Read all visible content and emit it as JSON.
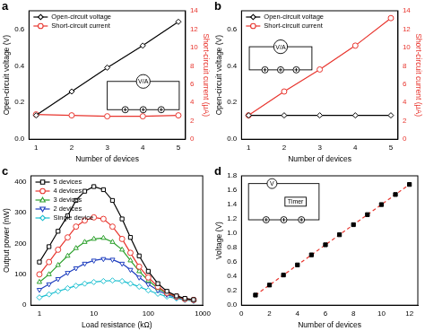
{
  "chart_data": [
    {
      "type": "line",
      "title": "a",
      "x": [
        1,
        2,
        3,
        4,
        5
      ],
      "xlim": [
        0.8,
        5.2
      ],
      "xticks": [
        1,
        2,
        3,
        4,
        5
      ],
      "x_label": "Number of devices",
      "y_label": "Open-circuit voltage (V)",
      "y2_label": "Short-circuit current (μA)",
      "ylim": [
        0,
        0.7
      ],
      "yticks": [
        {
          "value": 0,
          "label": "0.0"
        },
        0.2,
        0.4,
        0.6
      ],
      "y2lim": [
        0,
        14
      ],
      "y2ticks": [
        0,
        2,
        4,
        6,
        8,
        10,
        12,
        14
      ],
      "grid": false,
      "legend": "upper left",
      "series": [
        {
          "name": "Open-circuit voltage",
          "color": "#000000",
          "marker": "diamond",
          "values": [
            0.13,
            0.26,
            0.39,
            0.51,
            0.64
          ]
        },
        {
          "name": "Short-circuit current",
          "color": "#e8352e",
          "marker": "circle",
          "axis": "y2",
          "values": [
            2.7,
            2.6,
            2.5,
            2.5,
            2.6
          ]
        }
      ],
      "annotations": [
        "V/A"
      ]
    },
    {
      "type": "line",
      "title": "b",
      "x": [
        1,
        2,
        3,
        4,
        5
      ],
      "xlim": [
        0.8,
        5.2
      ],
      "xticks": [
        1,
        2,
        3,
        4,
        5
      ],
      "x_label": "Number of devices",
      "y_label": "Open-circuit voltage (V)",
      "y2_label": "Short-circuit current (μA)",
      "ylim": [
        0,
        0.7
      ],
      "yticks": [
        {
          "value": 0,
          "label": "0.0"
        },
        0.2,
        0.4,
        0.6
      ],
      "y2lim": [
        0,
        14
      ],
      "y2ticks": [
        0,
        2,
        4,
        6,
        8,
        10,
        12,
        14
      ],
      "grid": false,
      "legend": "upper left",
      "series": [
        {
          "name": "Open-circuit voltage",
          "color": "#000000",
          "marker": "diamond",
          "values": [
            0.13,
            0.13,
            0.13,
            0.13,
            0.13
          ]
        },
        {
          "name": "Short-circuit current",
          "color": "#e8352e",
          "marker": "circle",
          "axis": "y2",
          "values": [
            2.6,
            5.2,
            7.6,
            10.2,
            13.2
          ]
        }
      ],
      "annotations": [
        "V/A"
      ]
    },
    {
      "type": "line",
      "title": "c",
      "log": "x",
      "x": [
        1,
        1.5,
        2.2,
        3.3,
        4.7,
        6.8,
        10,
        15,
        22,
        33,
        47,
        68,
        100,
        150,
        220,
        330,
        470,
        680
      ],
      "xlim": [
        0.7,
        1000
      ],
      "xticks": [
        1,
        10,
        100,
        1000
      ],
      "x_label": "Load resistance (kΩ)",
      "y_label": "Output power (nW)",
      "ylim": [
        0,
        420
      ],
      "yticks": [
        0,
        100,
        200,
        300,
        400
      ],
      "grid": false,
      "legend": "upper left",
      "series": [
        {
          "name": "5 devices",
          "color": "#000000",
          "marker": "square",
          "values": [
            140,
            190,
            240,
            290,
            340,
            370,
            385,
            375,
            340,
            280,
            220,
            160,
            110,
            70,
            45,
            30,
            22,
            18
          ]
        },
        {
          "name": "4 devices",
          "color": "#e8352e",
          "marker": "circle",
          "values": [
            100,
            140,
            180,
            220,
            255,
            275,
            285,
            280,
            255,
            215,
            170,
            125,
            90,
            60,
            40,
            28,
            20,
            17
          ]
        },
        {
          "name": "3 devices",
          "color": "#2ca02c",
          "marker": "triangle",
          "values": [
            75,
            100,
            130,
            160,
            185,
            205,
            215,
            218,
            205,
            180,
            145,
            110,
            80,
            55,
            38,
            27,
            20,
            16
          ]
        },
        {
          "name": "2 devices",
          "color": "#1f3fbf",
          "marker": "triangle-down",
          "values": [
            50,
            68,
            85,
            105,
            120,
            135,
            145,
            150,
            148,
            135,
            115,
            90,
            68,
            48,
            34,
            25,
            19,
            15
          ]
        },
        {
          "name": "Single device",
          "color": "#17becf",
          "marker": "diamond",
          "values": [
            25,
            35,
            45,
            55,
            63,
            70,
            75,
            78,
            80,
            78,
            70,
            60,
            48,
            37,
            28,
            22,
            17,
            14
          ]
        }
      ]
    },
    {
      "type": "line",
      "title": "d",
      "x": [
        1,
        2,
        3,
        4,
        5,
        6,
        7,
        8,
        9,
        10,
        11,
        12
      ],
      "xlim": [
        0,
        12.6
      ],
      "xticks": [
        0,
        2,
        4,
        6,
        8,
        10,
        12
      ],
      "x_label": "Number of devices",
      "y_label": "Voltage (V)",
      "ylim": [
        0,
        1.8
      ],
      "yticks": [
        {
          "value": 0,
          "label": "0.0"
        },
        0.2,
        0.4,
        0.6,
        0.8,
        {
          "value": 1,
          "label": "1.0"
        },
        1.2,
        1.4,
        1.6,
        1.8
      ],
      "grid": false,
      "series": [
        {
          "color": "#e8352e",
          "marker": "square",
          "line_style": "dashed",
          "values": [
            0.14,
            0.28,
            0.42,
            0.56,
            0.7,
            0.84,
            0.98,
            1.12,
            1.26,
            1.4,
            1.54,
            1.68
          ]
        }
      ],
      "annotations": [
        "V",
        "Timer"
      ]
    }
  ]
}
